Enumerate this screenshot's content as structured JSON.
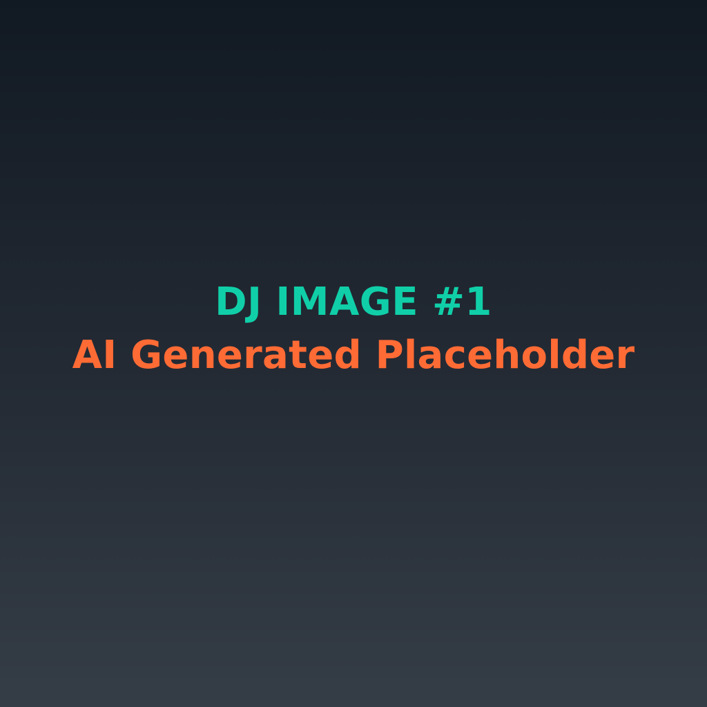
{
  "placeholder": {
    "title": "DJ IMAGE #1",
    "subtitle": "AI Generated Placeholder"
  },
  "colors": {
    "title": "#10cfa8",
    "subtitle": "#ff6b35",
    "background_top": "#111923",
    "background_bottom": "#353d47"
  }
}
